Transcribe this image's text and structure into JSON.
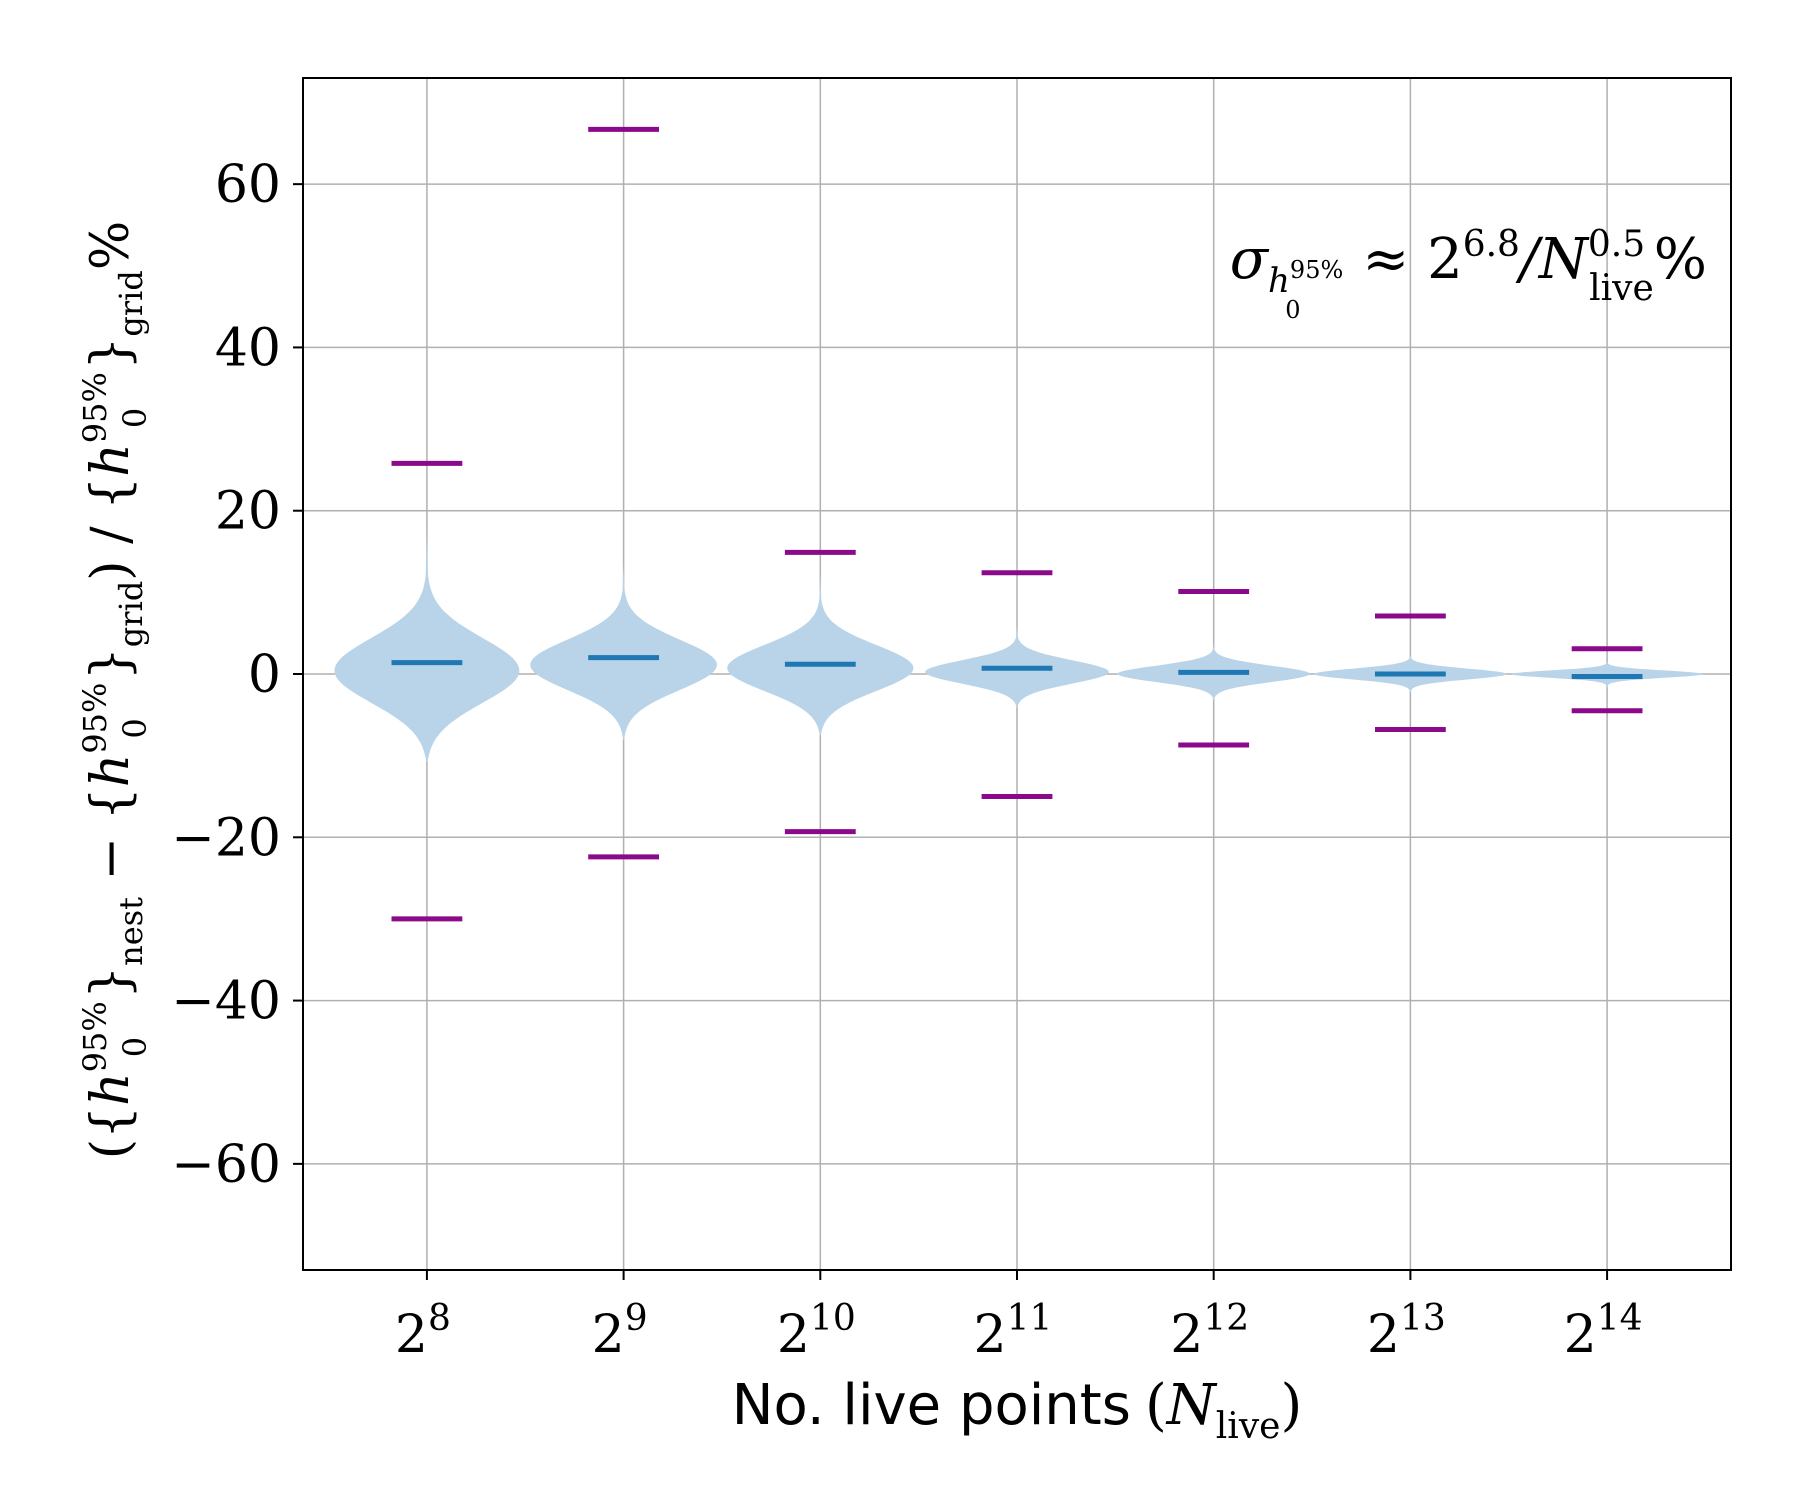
{
  "chart_data": {
    "type": "violin",
    "title": "",
    "xlabel": {
      "text": "No. live points",
      "math_open": "(",
      "math_var": "N",
      "math_sub": "live",
      "math_close": ")"
    },
    "ylabel": {
      "p1": "({",
      "v1": "h",
      "sup1": "95%",
      "sub1": "0",
      "close1": "}",
      "s1": "nest",
      "minus": " − {",
      "v2": "h",
      "sup2": "95%",
      "sub2": "0",
      "close2": "}",
      "s2": "grid",
      "div": ") / {",
      "v3": "h",
      "sup3": "95%",
      "sub3": "0",
      "close3": "}",
      "s3": "grid",
      "pct": "%"
    },
    "annotation": {
      "sigma": "σ",
      "h": "h",
      "hsup": "95%",
      "hsub": "0",
      "approx": " ≈ 2",
      "exp": "6.8",
      "slash": "/N",
      "nsup": "0.5",
      "nsub": "live",
      "pct": "%"
    },
    "categories": [
      {
        "base": "2",
        "exp": "8"
      },
      {
        "base": "2",
        "exp": "9"
      },
      {
        "base": "2",
        "exp": "10"
      },
      {
        "base": "2",
        "exp": "11"
      },
      {
        "base": "2",
        "exp": "12"
      },
      {
        "base": "2",
        "exp": "13"
      },
      {
        "base": "2",
        "exp": "14"
      }
    ],
    "medians": [
      1.4,
      2.0,
      1.2,
      0.7,
      0.2,
      0.0,
      -0.3
    ],
    "maxima": [
      25.8,
      66.7,
      14.9,
      12.4,
      10.1,
      7.1,
      3.1
    ],
    "minima": [
      -30.0,
      -22.4,
      -19.3,
      -15.0,
      -8.7,
      -6.8,
      -4.5
    ],
    "violin_top": [
      17.6,
      13.8,
      12.5,
      6.0,
      3.8,
      2.3,
      1.4
    ],
    "violin_bottom": [
      -10.8,
      -8.2,
      -7.6,
      -4.2,
      -3.3,
      -2.4,
      -1.8
    ],
    "violin_halfwidth": [
      0.49,
      0.49,
      0.49,
      0.48,
      0.5,
      0.5,
      0.5
    ],
    "violin_mode_offset": [
      0.2,
      1.0,
      0.6,
      0.2,
      0.0,
      0.0,
      0.0
    ],
    "yticks": [
      -60,
      -40,
      -20,
      0,
      20,
      40,
      60
    ],
    "ylim": [
      -73,
      73
    ],
    "grid": true,
    "colors": {
      "violin": "#b9d4e8",
      "median": "#1f77b4",
      "extrema": "#8b0a8b",
      "grid": "#b0b0b0",
      "axis": "#000000"
    }
  }
}
